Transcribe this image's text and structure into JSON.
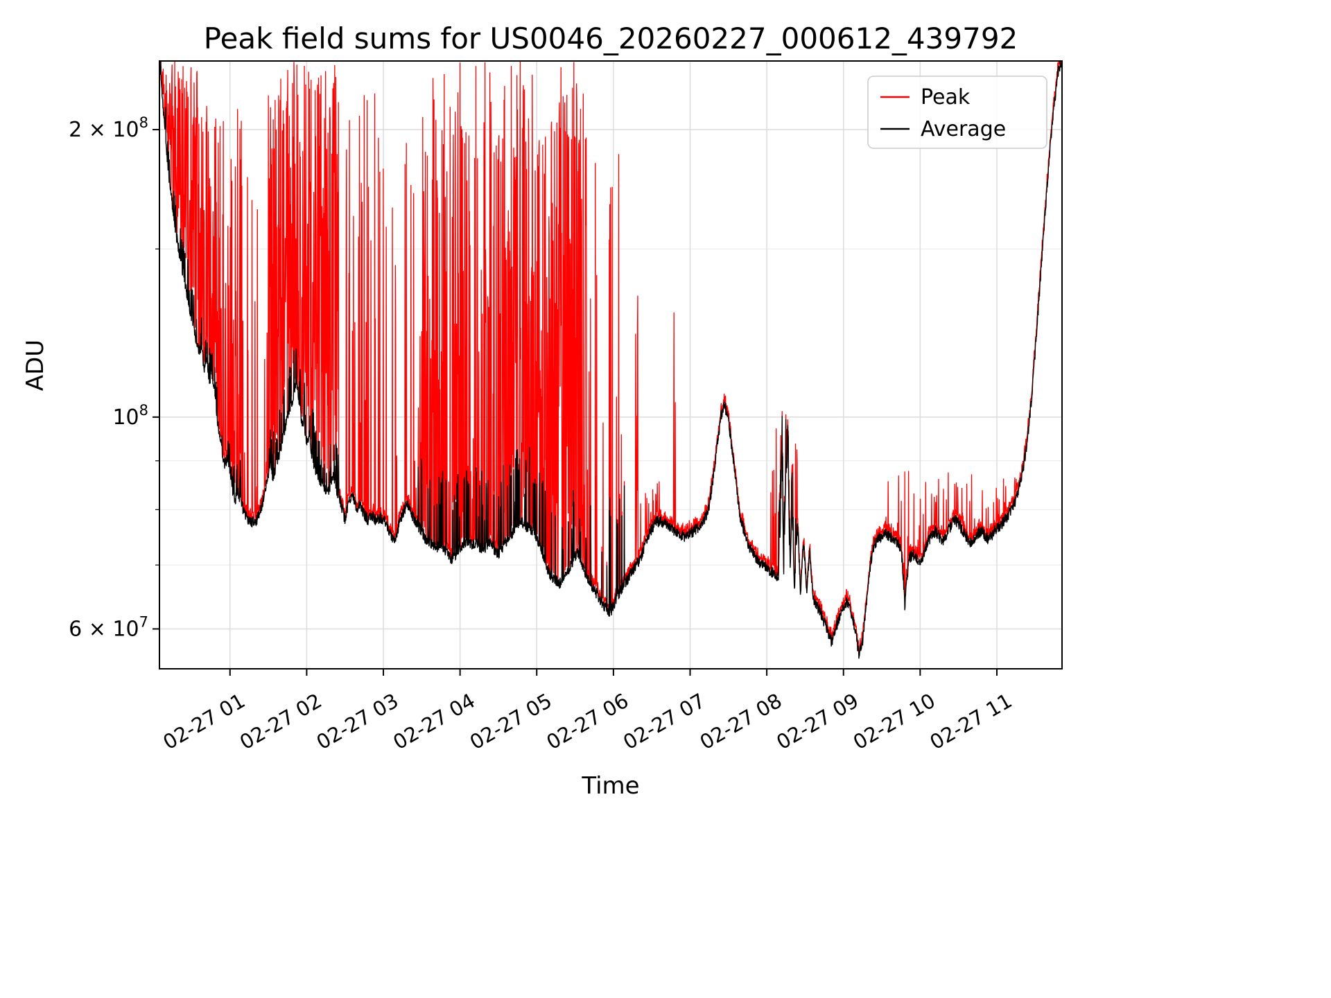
{
  "chart_data": {
    "type": "line",
    "title": "Peak field sums for US0046_20260227_000612_439792",
    "xlabel": "Time",
    "ylabel": "ADU",
    "yscale": "log",
    "grid": true,
    "x_unit": "hours after 2026-02-27 00:00",
    "value_scale": 1000000,
    "value_unit": "ADU",
    "xlim": [
      0.08,
      11.85
    ],
    "ylim": [
      54500000,
      236000000
    ],
    "x_ticks": [
      {
        "t": 1,
        "label": "02-27 01"
      },
      {
        "t": 2,
        "label": "02-27 02"
      },
      {
        "t": 3,
        "label": "02-27 03"
      },
      {
        "t": 4,
        "label": "02-27 04"
      },
      {
        "t": 5,
        "label": "02-27 05"
      },
      {
        "t": 6,
        "label": "02-27 06"
      },
      {
        "t": 7,
        "label": "02-27 07"
      },
      {
        "t": 8,
        "label": "02-27 08"
      },
      {
        "t": 9,
        "label": "02-27 09"
      },
      {
        "t": 10,
        "label": "02-27 10"
      },
      {
        "t": 11,
        "label": "02-27 11"
      }
    ],
    "y_ticks_major": [
      {
        "v": 60000000,
        "label": "6 × 10^7"
      },
      {
        "v": 100000000,
        "label": "10^8"
      },
      {
        "v": 200000000,
        "label": "2 × 10^8"
      }
    ],
    "y_ticks_minor": [
      70000000,
      80000000,
      90000000,
      150000000
    ],
    "legend": {
      "position": "upper right",
      "entries": [
        {
          "label": "Peak",
          "color": "#ff0000"
        },
        {
          "label": "Average",
          "color": "#000000"
        }
      ]
    },
    "series": [
      {
        "name": "Peak",
        "color": "#ff0000",
        "style": "average plus spike clusters (see peak_spike_clusters)"
      },
      {
        "name": "Average",
        "color": "#000000",
        "style": "control points in avg_points"
      }
    ],
    "avg_points": [
      [
        0.08,
        235
      ],
      [
        0.1,
        228
      ],
      [
        0.13,
        210
      ],
      [
        0.16,
        196
      ],
      [
        0.2,
        180
      ],
      [
        0.25,
        166
      ],
      [
        0.3,
        155
      ],
      [
        0.35,
        147
      ],
      [
        0.4,
        140
      ],
      [
        0.45,
        133
      ],
      [
        0.5,
        127
      ],
      [
        0.55,
        121
      ],
      [
        0.6,
        117
      ],
      [
        0.63,
        119
      ],
      [
        0.66,
        112
      ],
      [
        0.7,
        116
      ],
      [
        0.73,
        108
      ],
      [
        0.76,
        112
      ],
      [
        0.8,
        106
      ],
      [
        0.83,
        100
      ],
      [
        0.87,
        95
      ],
      [
        0.9,
        92
      ],
      [
        0.93,
        89
      ],
      [
        0.97,
        91
      ],
      [
        1.0,
        88
      ],
      [
        1.03,
        84
      ],
      [
        1.07,
        82
      ],
      [
        1.1,
        84
      ],
      [
        1.15,
        81
      ],
      [
        1.2,
        79
      ],
      [
        1.25,
        78
      ],
      [
        1.3,
        77.5
      ],
      [
        1.35,
        78
      ],
      [
        1.4,
        80
      ],
      [
        1.45,
        83
      ],
      [
        1.5,
        87
      ],
      [
        1.53,
        90
      ],
      [
        1.56,
        86
      ],
      [
        1.6,
        89
      ],
      [
        1.65,
        92
      ],
      [
        1.7,
        96
      ],
      [
        1.75,
        100
      ],
      [
        1.8,
        103
      ],
      [
        1.84,
        107
      ],
      [
        1.87,
        109
      ],
      [
        1.9,
        104
      ],
      [
        1.93,
        100
      ],
      [
        1.97,
        97
      ],
      [
        2.0,
        94
      ],
      [
        2.03,
        96
      ],
      [
        2.07,
        91
      ],
      [
        2.1,
        89
      ],
      [
        2.15,
        86
      ],
      [
        2.2,
        85
      ],
      [
        2.25,
        84
      ],
      [
        2.3,
        84
      ],
      [
        2.35,
        87
      ],
      [
        2.4,
        83
      ],
      [
        2.45,
        81
      ],
      [
        2.5,
        78
      ],
      [
        2.55,
        82
      ],
      [
        2.6,
        83
      ],
      [
        2.65,
        80
      ],
      [
        2.7,
        81
      ],
      [
        2.75,
        79
      ],
      [
        2.8,
        78
      ],
      [
        2.85,
        79
      ],
      [
        2.9,
        78
      ],
      [
        2.95,
        78.5
      ],
      [
        3.0,
        78
      ],
      [
        3.05,
        77
      ],
      [
        3.1,
        75
      ],
      [
        3.15,
        74.5
      ],
      [
        3.2,
        77
      ],
      [
        3.25,
        79
      ],
      [
        3.3,
        81
      ],
      [
        3.35,
        80
      ],
      [
        3.4,
        78
      ],
      [
        3.45,
        77
      ],
      [
        3.5,
        76
      ],
      [
        3.55,
        74.5
      ],
      [
        3.6,
        74
      ],
      [
        3.65,
        73.5
      ],
      [
        3.7,
        73
      ],
      [
        3.75,
        74
      ],
      [
        3.8,
        72.5
      ],
      [
        3.85,
        71.5
      ],
      [
        3.9,
        71
      ],
      [
        3.95,
        72
      ],
      [
        4.0,
        73
      ],
      [
        4.05,
        73.5
      ],
      [
        4.1,
        74
      ],
      [
        4.15,
        73.5
      ],
      [
        4.2,
        74
      ],
      [
        4.25,
        73
      ],
      [
        4.3,
        72.5
      ],
      [
        4.35,
        73.5
      ],
      [
        4.4,
        74
      ],
      [
        4.45,
        72.5
      ],
      [
        4.5,
        72
      ],
      [
        4.55,
        73
      ],
      [
        4.6,
        74
      ],
      [
        4.65,
        75
      ],
      [
        4.7,
        76
      ],
      [
        4.75,
        77.5
      ],
      [
        4.8,
        78
      ],
      [
        4.85,
        77
      ],
      [
        4.9,
        76.5
      ],
      [
        4.95,
        76
      ],
      [
        5.0,
        75
      ],
      [
        5.05,
        73
      ],
      [
        5.1,
        71
      ],
      [
        5.15,
        69
      ],
      [
        5.2,
        68
      ],
      [
        5.25,
        67.5
      ],
      [
        5.3,
        67
      ],
      [
        5.35,
        68
      ],
      [
        5.4,
        69
      ],
      [
        5.45,
        70
      ],
      [
        5.5,
        71.5
      ],
      [
        5.55,
        72
      ],
      [
        5.6,
        70
      ],
      [
        5.65,
        68
      ],
      [
        5.7,
        67
      ],
      [
        5.75,
        66
      ],
      [
        5.8,
        65
      ],
      [
        5.85,
        64
      ],
      [
        5.9,
        63
      ],
      [
        5.95,
        62
      ],
      [
        6.0,
        63.5
      ],
      [
        6.05,
        65
      ],
      [
        6.1,
        66
      ],
      [
        6.15,
        67
      ],
      [
        6.2,
        68
      ],
      [
        6.25,
        69
      ],
      [
        6.3,
        70
      ],
      [
        6.35,
        71
      ],
      [
        6.4,
        73
      ],
      [
        6.45,
        75
      ],
      [
        6.5,
        76.5
      ],
      [
        6.55,
        77.5
      ],
      [
        6.6,
        78
      ],
      [
        6.65,
        77.5
      ],
      [
        6.7,
        77
      ],
      [
        6.75,
        76.5
      ],
      [
        6.8,
        76
      ],
      [
        6.85,
        75.5
      ],
      [
        6.9,
        75
      ],
      [
        6.95,
        75
      ],
      [
        7.0,
        75.5
      ],
      [
        7.05,
        76
      ],
      [
        7.1,
        76.5
      ],
      [
        7.15,
        77
      ],
      [
        7.2,
        78.5
      ],
      [
        7.25,
        81
      ],
      [
        7.3,
        86
      ],
      [
        7.35,
        93
      ],
      [
        7.4,
        100
      ],
      [
        7.45,
        103
      ],
      [
        7.5,
        99
      ],
      [
        7.55,
        92
      ],
      [
        7.6,
        85
      ],
      [
        7.65,
        79
      ],
      [
        7.7,
        76
      ],
      [
        7.75,
        74
      ],
      [
        7.8,
        72.5
      ],
      [
        7.85,
        71.5
      ],
      [
        7.9,
        70.5
      ],
      [
        7.95,
        70
      ],
      [
        8.0,
        69.5
      ],
      [
        8.05,
        69
      ],
      [
        8.1,
        68.5
      ],
      [
        8.15,
        68
      ],
      [
        8.18,
        78
      ],
      [
        8.2,
        90
      ],
      [
        8.22,
        68
      ],
      [
        8.25,
        88
      ],
      [
        8.28,
        90
      ],
      [
        8.3,
        67
      ],
      [
        8.33,
        80
      ],
      [
        8.36,
        66
      ],
      [
        8.4,
        78
      ],
      [
        8.44,
        65
      ],
      [
        8.48,
        74
      ],
      [
        8.52,
        66
      ],
      [
        8.56,
        72
      ],
      [
        8.6,
        65
      ],
      [
        8.65,
        63.5
      ],
      [
        8.7,
        62.5
      ],
      [
        8.75,
        61
      ],
      [
        8.8,
        59.5
      ],
      [
        8.85,
        58
      ],
      [
        8.9,
        60
      ],
      [
        8.95,
        62
      ],
      [
        9.0,
        63.5
      ],
      [
        9.05,
        64
      ],
      [
        9.1,
        62.5
      ],
      [
        9.15,
        60
      ],
      [
        9.2,
        56.5
      ],
      [
        9.25,
        58
      ],
      [
        9.3,
        64
      ],
      [
        9.35,
        70
      ],
      [
        9.4,
        73.5
      ],
      [
        9.45,
        74.5
      ],
      [
        9.5,
        75
      ],
      [
        9.55,
        75.5
      ],
      [
        9.6,
        75
      ],
      [
        9.65,
        74.5
      ],
      [
        9.7,
        74
      ],
      [
        9.75,
        73
      ],
      [
        9.78,
        68
      ],
      [
        9.8,
        63.5
      ],
      [
        9.83,
        68
      ],
      [
        9.86,
        71
      ],
      [
        9.9,
        72
      ],
      [
        9.95,
        71
      ],
      [
        10.0,
        70.5
      ],
      [
        10.05,
        72
      ],
      [
        10.1,
        74
      ],
      [
        10.15,
        75
      ],
      [
        10.2,
        76
      ],
      [
        10.25,
        75
      ],
      [
        10.3,
        74
      ],
      [
        10.35,
        75.5
      ],
      [
        10.4,
        77
      ],
      [
        10.45,
        78
      ],
      [
        10.5,
        77.5
      ],
      [
        10.55,
        76
      ],
      [
        10.6,
        75
      ],
      [
        10.65,
        74
      ],
      [
        10.7,
        74.5
      ],
      [
        10.75,
        75.5
      ],
      [
        10.8,
        76
      ],
      [
        10.85,
        75
      ],
      [
        10.9,
        74.5
      ],
      [
        10.95,
        75.5
      ],
      [
        11.0,
        76.5
      ],
      [
        11.05,
        77
      ],
      [
        11.1,
        78
      ],
      [
        11.15,
        79
      ],
      [
        11.2,
        80.5
      ],
      [
        11.25,
        82
      ],
      [
        11.3,
        85
      ],
      [
        11.35,
        89
      ],
      [
        11.4,
        95
      ],
      [
        11.45,
        104
      ],
      [
        11.5,
        117
      ],
      [
        11.55,
        133
      ],
      [
        11.6,
        152
      ],
      [
        11.65,
        172
      ],
      [
        11.7,
        193
      ],
      [
        11.75,
        213
      ],
      [
        11.8,
        230
      ],
      [
        11.85,
        236
      ]
    ],
    "peak_spike_clusters": [
      {
        "t0": 0.08,
        "t1": 0.6,
        "p": 0.85,
        "max": 236
      },
      {
        "t0": 0.6,
        "t1": 1.15,
        "p": 0.55,
        "max": 215
      },
      {
        "t0": 1.15,
        "t1": 1.5,
        "p": 0.18,
        "max": 182
      },
      {
        "t0": 1.5,
        "t1": 2.42,
        "p": 0.85,
        "max": 236
      },
      {
        "t0": 2.42,
        "t1": 2.8,
        "p": 0.12,
        "max": 236
      },
      {
        "t0": 2.8,
        "t1": 3.45,
        "p": 0.1,
        "max": 222
      },
      {
        "t0": 3.45,
        "t1": 4.05,
        "p": 0.5,
        "max": 236
      },
      {
        "t0": 4.05,
        "t1": 4.55,
        "p": 0.32,
        "max": 236
      },
      {
        "t0": 4.55,
        "t1": 5.65,
        "p": 0.7,
        "max": 236
      },
      {
        "t0": 5.65,
        "t1": 6.15,
        "p": 0.12,
        "max": 236
      },
      {
        "t0": 6.28,
        "t1": 6.32,
        "p": 0.6,
        "max": 165
      },
      {
        "t0": 6.35,
        "t1": 6.6,
        "p": 0.15,
        "max": 86
      },
      {
        "t0": 6.78,
        "t1": 6.81,
        "p": 0.5,
        "max": 160
      },
      {
        "t0": 8.05,
        "t1": 8.4,
        "p": 0.35,
        "max": 98
      },
      {
        "t0": 9.35,
        "t1": 11.3,
        "p": 0.12,
        "max": 88
      }
    ],
    "avg_spike_clusters": [
      {
        "t0": 0.08,
        "t1": 1.15,
        "p": 0.2,
        "mult": 1.1
      },
      {
        "t0": 1.5,
        "t1": 2.42,
        "p": 0.2,
        "mult": 1.13
      },
      {
        "t0": 3.45,
        "t1": 5.65,
        "p": 0.12,
        "mult": 1.22
      },
      {
        "t0": 5.65,
        "t1": 6.15,
        "p": 0.06,
        "mult": 1.35
      },
      {
        "t0": 8.15,
        "t1": 8.38,
        "p": 0.25,
        "mult": 1.15
      }
    ]
  }
}
